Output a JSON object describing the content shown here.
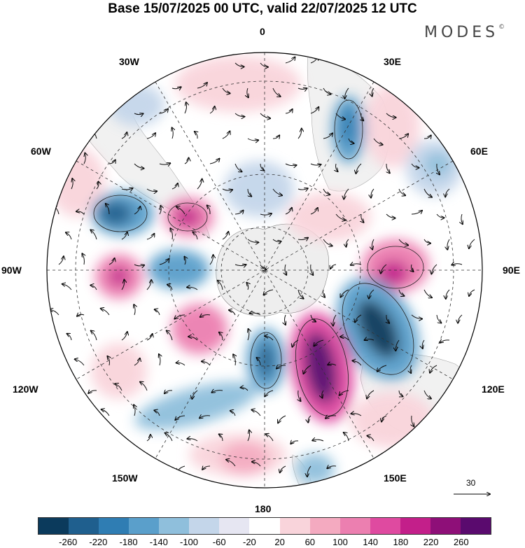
{
  "title": "Base 15/07/2025 00 UTC, valid 22/07/2025 12 UTC",
  "brand": "MODES",
  "brand_mark": "©",
  "longitude_labels": {
    "top": "0",
    "bottom": "180",
    "left": "90W",
    "right": "90E",
    "upper_left_1": "30W",
    "upper_left_2": "60W",
    "upper_right_1": "30E",
    "upper_right_2": "60E",
    "lower_left_1": "120W",
    "lower_left_2": "150W",
    "lower_right_1": "120E",
    "lower_right_2": "150E"
  },
  "reference_vector": "30",
  "colorbar": {
    "colors": [
      "#0b3a5c",
      "#1f5f8e",
      "#2f7db3",
      "#5a9fcb",
      "#8fbfdc",
      "#c4d6ea",
      "#e6e6f2",
      "#ffffff",
      "#f9d4db",
      "#f4aac0",
      "#ec7fb0",
      "#df4aa0",
      "#c31f8a",
      "#8e0f78",
      "#5a0a6e"
    ],
    "tick_labels": [
      "-260",
      "-220",
      "-180",
      "-140",
      "-100",
      "-60",
      "-20",
      "20",
      "60",
      "100",
      "140",
      "180",
      "220",
      "260"
    ]
  },
  "anomaly_features": [
    {
      "sign": "negative",
      "strength": -140,
      "near": "30E"
    },
    {
      "sign": "negative",
      "strength": -60,
      "near": "60E"
    },
    {
      "sign": "negative",
      "strength": -180,
      "near": "60W"
    },
    {
      "sign": "positive",
      "strength": 180,
      "near": "40W"
    },
    {
      "sign": "positive",
      "strength": 140,
      "near": "90W"
    },
    {
      "sign": "negative",
      "strength": -140,
      "near": "80W"
    },
    {
      "sign": "positive",
      "strength": 180,
      "near": "90E"
    },
    {
      "sign": "negative",
      "strength": -260,
      "near": "115E"
    },
    {
      "sign": "positive",
      "strength": 260,
      "near": "150E"
    },
    {
      "sign": "negative",
      "strength": -180,
      "near": "165W"
    },
    {
      "sign": "negative",
      "strength": -140,
      "near": "150W"
    },
    {
      "sign": "positive",
      "strength": 140,
      "near": "120W"
    },
    {
      "sign": "positive",
      "strength": 100,
      "near": "170W"
    },
    {
      "sign": "negative",
      "strength": -100,
      "near": "160E"
    }
  ]
}
